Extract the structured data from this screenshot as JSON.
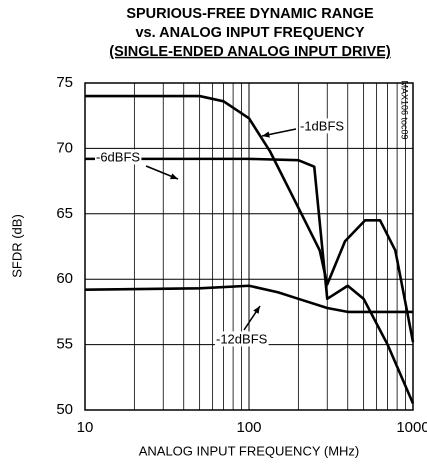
{
  "chart_data": {
    "type": "line",
    "title": [
      "SPURIOUS-FREE DYNAMIC RANGE",
      "vs. ANALOG INPUT FREQUENCY",
      "(SINGLE-ENDED ANALOG INPUT DRIVE)"
    ],
    "x_label": "ANALOG INPUT FREQUENCY (MHz)",
    "y_label": "SFDR (dB)",
    "side_note": "MAX106 toc09",
    "xlim": [
      10,
      1000
    ],
    "xticks": [
      10,
      100,
      1000
    ],
    "xscale": "log",
    "ylim": [
      50,
      75
    ],
    "yticks": [
      50,
      55,
      60,
      65,
      70,
      75
    ],
    "grid": true,
    "series": [
      {
        "name": "-1dBFS",
        "color": "#000000",
        "x": [
          10,
          30,
          50,
          70,
          100,
          134,
          205,
          270,
          300,
          385,
          510,
          630,
          780,
          1000
        ],
        "values": [
          74,
          74,
          74,
          73.6,
          72.3,
          69.8,
          65.2,
          62.2,
          59.6,
          62.9,
          64.5,
          64.5,
          62.2,
          55.2
        ]
      },
      {
        "name": "-6dBFS",
        "color": "#000000",
        "x": [
          10,
          50,
          100,
          200,
          250,
          300,
          400,
          500,
          700,
          1000
        ],
        "values": [
          69.2,
          69.2,
          69.2,
          69.1,
          68.6,
          58.5,
          59.5,
          58.5,
          55,
          50.5
        ]
      },
      {
        "name": "-12dBFS",
        "color": "#000000",
        "x": [
          10,
          50,
          100,
          150,
          200,
          300,
          400,
          600,
          1000
        ],
        "values": [
          59.2,
          59.3,
          59.5,
          59,
          58.5,
          57.8,
          57.5,
          57.5,
          57.5
        ]
      }
    ]
  }
}
